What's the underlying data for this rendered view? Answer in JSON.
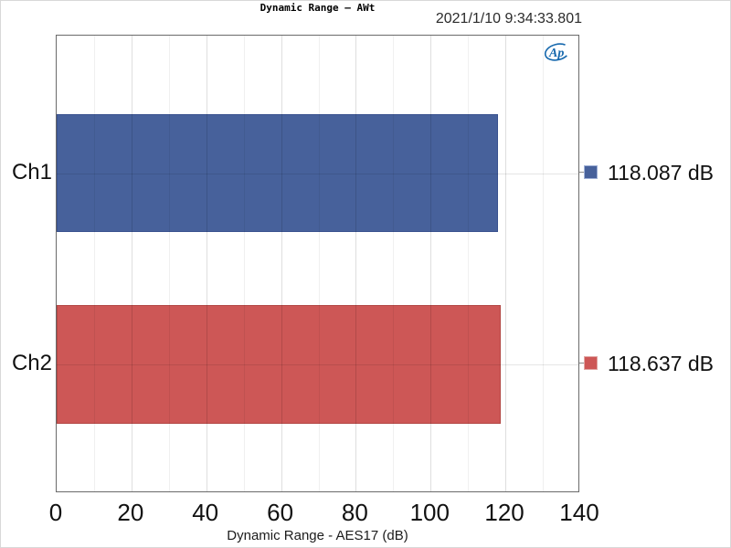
{
  "header": {
    "title": "Dynamic Range — AWt",
    "timestamp": "2021/1/10 9:34:33.801"
  },
  "logo": {
    "name": "audio-precision-logo",
    "text": "Ap",
    "color": "#1668ad"
  },
  "chart_data": {
    "type": "bar",
    "orientation": "horizontal",
    "title": "Dynamic Range — AWt",
    "xlabel": "Dynamic Range - AES17 (dB)",
    "xlim": [
      0,
      140
    ],
    "xticks": [
      0,
      20,
      40,
      60,
      80,
      100,
      120,
      140
    ],
    "minor_tick_step": 10,
    "grid": "on",
    "legend_position": "right",
    "categories": [
      "Ch1",
      "Ch2"
    ],
    "series": [
      {
        "name": "Ch1",
        "value": 118.087,
        "legend_label": "118.087 dB",
        "color": "#47619b",
        "border_color": "#39528f",
        "swatch_border": "#9fb0d6"
      },
      {
        "name": "Ch2",
        "value": 118.637,
        "legend_label": "118.637 dB",
        "color": "#cd5756",
        "border_color": "#b24744",
        "swatch_border": "#e0a5a2"
      }
    ]
  }
}
